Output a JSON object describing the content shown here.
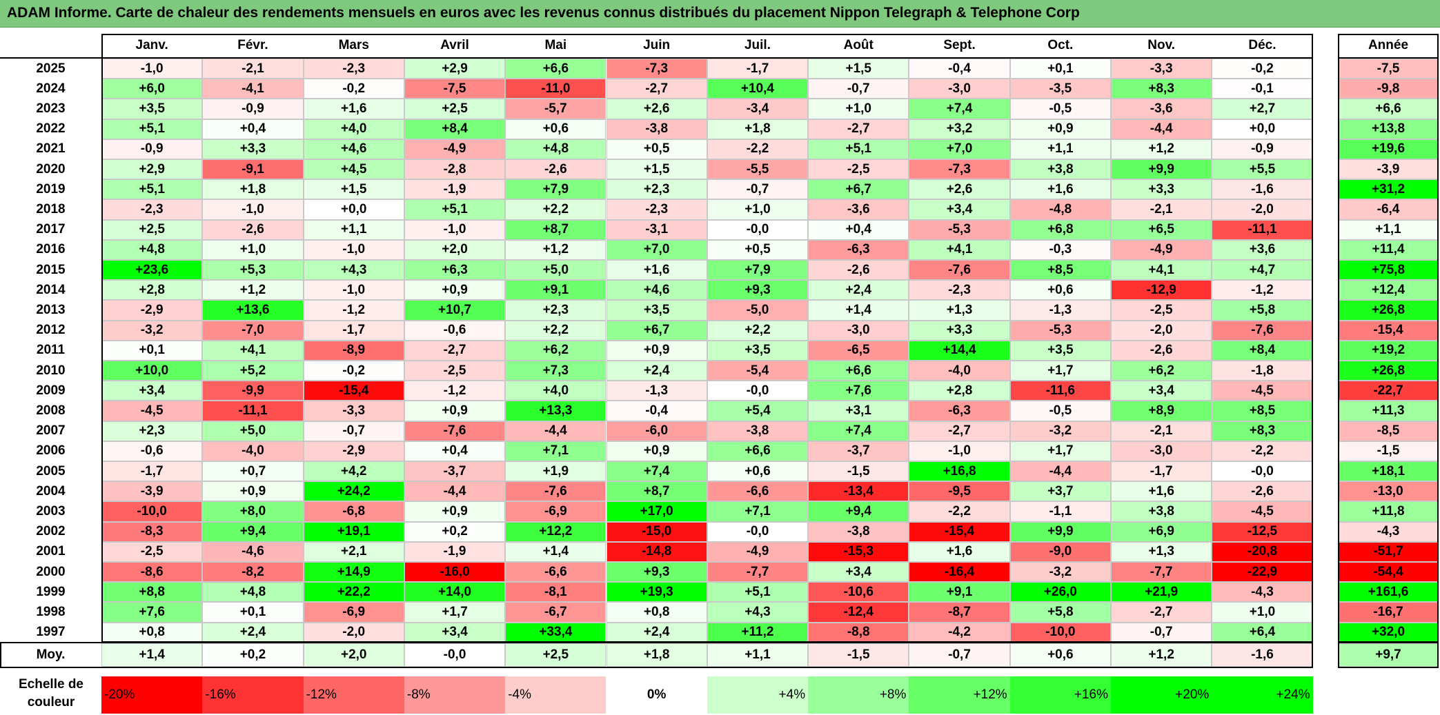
{
  "title": "ADAM Informe. Carte de chaleur des rendements mensuels en euros avec les revenus connus distribués du placement Nippon Telegraph & Telephone Corp",
  "chart_data": {
    "type": "heatmap",
    "columns": [
      "Janv.",
      "Févr.",
      "Mars",
      "Avril",
      "Mai",
      "Juin",
      "Juil.",
      "Août",
      "Sept.",
      "Oct.",
      "Nov.",
      "Déc."
    ],
    "year_column": "Année",
    "rows": [
      {
        "year": "2025",
        "values": [
          "-1,0",
          "-2,1",
          "-2,3",
          "+2,9",
          "+6,6",
          "-7,3",
          "-1,7",
          "+1,5",
          "-0,4",
          "+0,1",
          "-3,3",
          "-0,2"
        ],
        "annual": "-7,5"
      },
      {
        "year": "2024",
        "values": [
          "+6,0",
          "-4,1",
          "-0,2",
          "-7,5",
          "-11,0",
          "-2,7",
          "+10,4",
          "-0,7",
          "-3,0",
          "-3,5",
          "+8,3",
          "-0,1"
        ],
        "annual": "-9,8"
      },
      {
        "year": "2023",
        "values": [
          "+3,5",
          "-0,9",
          "+1,6",
          "+2,5",
          "-5,7",
          "+2,6",
          "-3,4",
          "+1,0",
          "+7,4",
          "-0,5",
          "-3,6",
          "+2,7"
        ],
        "annual": "+6,6"
      },
      {
        "year": "2022",
        "values": [
          "+5,1",
          "+0,4",
          "+4,0",
          "+8,4",
          "+0,6",
          "-3,8",
          "+1,8",
          "-2,7",
          "+3,2",
          "+0,9",
          "-4,4",
          "+0,0"
        ],
        "annual": "+13,8"
      },
      {
        "year": "2021",
        "values": [
          "-0,9",
          "+3,3",
          "+4,6",
          "-4,9",
          "+4,8",
          "+0,5",
          "-2,2",
          "+5,1",
          "+7,0",
          "+1,1",
          "+1,2",
          "-0,9"
        ],
        "annual": "+19,6"
      },
      {
        "year": "2020",
        "values": [
          "+2,9",
          "-9,1",
          "+4,5",
          "-2,8",
          "-2,6",
          "+1,5",
          "-5,5",
          "-2,5",
          "-7,3",
          "+3,8",
          "+9,9",
          "+5,5"
        ],
        "annual": "-3,9"
      },
      {
        "year": "2019",
        "values": [
          "+5,1",
          "+1,8",
          "+1,5",
          "-1,9",
          "+7,9",
          "+2,3",
          "-0,7",
          "+6,7",
          "+2,6",
          "+1,6",
          "+3,3",
          "-1,6"
        ],
        "annual": "+31,2"
      },
      {
        "year": "2018",
        "values": [
          "-2,3",
          "-1,0",
          "+0,0",
          "+5,1",
          "+2,2",
          "-2,3",
          "+1,0",
          "-3,6",
          "+3,4",
          "-4,8",
          "-2,1",
          "-2,0"
        ],
        "annual": "-6,4"
      },
      {
        "year": "2017",
        "values": [
          "+2,5",
          "-2,6",
          "+1,1",
          "-1,0",
          "+8,7",
          "-3,1",
          "-0,0",
          "+0,4",
          "-5,3",
          "+6,8",
          "+6,5",
          "-11,1"
        ],
        "annual": "+1,1"
      },
      {
        "year": "2016",
        "values": [
          "+4,8",
          "+1,0",
          "-1,0",
          "+2,0",
          "+1,2",
          "+7,0",
          "+0,5",
          "-6,3",
          "+4,1",
          "-0,3",
          "-4,9",
          "+3,6"
        ],
        "annual": "+11,4"
      },
      {
        "year": "2015",
        "values": [
          "+23,6",
          "+5,3",
          "+4,3",
          "+6,3",
          "+5,0",
          "+1,6",
          "+7,9",
          "-2,6",
          "-7,6",
          "+8,5",
          "+4,1",
          "+4,7"
        ],
        "annual": "+75,8"
      },
      {
        "year": "2014",
        "values": [
          "+2,8",
          "+1,2",
          "-1,0",
          "+0,9",
          "+9,1",
          "+4,6",
          "+9,3",
          "+2,4",
          "-2,3",
          "+0,6",
          "-12,9",
          "-1,2"
        ],
        "annual": "+12,4"
      },
      {
        "year": "2013",
        "values": [
          "-2,9",
          "+13,6",
          "-1,2",
          "+10,7",
          "+2,3",
          "+3,5",
          "-5,0",
          "+1,4",
          "+1,3",
          "-1,3",
          "-2,5",
          "+5,8"
        ],
        "annual": "+26,8"
      },
      {
        "year": "2012",
        "values": [
          "-3,2",
          "-7,0",
          "-1,7",
          "-0,6",
          "+2,2",
          "+6,7",
          "+2,2",
          "-3,0",
          "+3,3",
          "-5,3",
          "-2,0",
          "-7,6"
        ],
        "annual": "-15,4"
      },
      {
        "year": "2011",
        "values": [
          "+0,1",
          "+4,1",
          "-8,9",
          "-2,7",
          "+6,2",
          "+0,9",
          "+3,5",
          "-6,5",
          "+14,4",
          "+3,5",
          "-2,6",
          "+8,4"
        ],
        "annual": "+19,2"
      },
      {
        "year": "2010",
        "values": [
          "+10,0",
          "+5,2",
          "-0,2",
          "-2,5",
          "+7,3",
          "+2,4",
          "-5,4",
          "+6,6",
          "-4,0",
          "+1,7",
          "+6,2",
          "-1,8"
        ],
        "annual": "+26,8"
      },
      {
        "year": "2009",
        "values": [
          "+3,4",
          "-9,9",
          "-15,4",
          "-1,2",
          "+4,0",
          "-1,3",
          "-0,0",
          "+7,6",
          "+2,8",
          "-11,6",
          "+3,4",
          "-4,5"
        ],
        "annual": "-22,7"
      },
      {
        "year": "2008",
        "values": [
          "-4,5",
          "-11,1",
          "-3,3",
          "+0,9",
          "+13,3",
          "-0,4",
          "+5,4",
          "+3,1",
          "-6,3",
          "-0,5",
          "+8,9",
          "+8,5"
        ],
        "annual": "+11,3"
      },
      {
        "year": "2007",
        "values": [
          "+2,3",
          "+5,0",
          "-0,7",
          "-7,6",
          "-4,4",
          "-6,0",
          "-3,8",
          "+7,4",
          "-2,7",
          "-3,2",
          "-2,1",
          "+8,3"
        ],
        "annual": "-8,5"
      },
      {
        "year": "2006",
        "values": [
          "-0,6",
          "-4,0",
          "-2,9",
          "+0,4",
          "+7,1",
          "+0,9",
          "+6,6",
          "-3,7",
          "-1,0",
          "+1,7",
          "-3,0",
          "-2,2"
        ],
        "annual": "-1,5"
      },
      {
        "year": "2005",
        "values": [
          "-1,7",
          "+0,7",
          "+4,2",
          "-3,7",
          "+1,9",
          "+7,4",
          "+0,6",
          "-1,5",
          "+16,8",
          "-4,4",
          "-1,7",
          "-0,0"
        ],
        "annual": "+18,1"
      },
      {
        "year": "2004",
        "values": [
          "-3,9",
          "+0,9",
          "+24,2",
          "-4,4",
          "-7,6",
          "+8,7",
          "-6,6",
          "-13,4",
          "-9,5",
          "+3,7",
          "+1,6",
          "-2,6"
        ],
        "annual": "-13,0"
      },
      {
        "year": "2003",
        "values": [
          "-10,0",
          "+8,0",
          "-6,8",
          "+0,9",
          "-6,9",
          "+17,0",
          "+7,1",
          "+9,4",
          "-2,2",
          "-1,1",
          "+3,8",
          "-4,5"
        ],
        "annual": "+11,8"
      },
      {
        "year": "2002",
        "values": [
          "-8,3",
          "+9,4",
          "+19,1",
          "+0,2",
          "+12,2",
          "-15,0",
          "-0,0",
          "-3,8",
          "-15,4",
          "+9,9",
          "+6,9",
          "-12,5"
        ],
        "annual": "-4,3"
      },
      {
        "year": "2001",
        "values": [
          "-2,5",
          "-4,6",
          "+2,1",
          "-1,9",
          "+1,4",
          "-14,8",
          "-4,9",
          "-15,3",
          "+1,6",
          "-9,0",
          "+1,3",
          "-20,8"
        ],
        "annual": "-51,7"
      },
      {
        "year": "2000",
        "values": [
          "-8,6",
          "-8,2",
          "+14,9",
          "-16,0",
          "-6,6",
          "+9,3",
          "-7,7",
          "+3,4",
          "-16,4",
          "-3,2",
          "-7,7",
          "-22,9"
        ],
        "annual": "-54,4"
      },
      {
        "year": "1999",
        "values": [
          "+8,8",
          "+4,8",
          "+22,2",
          "+14,0",
          "-8,1",
          "+19,3",
          "+5,1",
          "-10,6",
          "+9,1",
          "+26,0",
          "+21,9",
          "-4,3"
        ],
        "annual": "+161,6"
      },
      {
        "year": "1998",
        "values": [
          "+7,6",
          "+0,1",
          "-6,9",
          "+1,7",
          "-6,7",
          "+0,8",
          "+4,3",
          "-12,4",
          "-8,7",
          "+5,8",
          "-2,7",
          "+1,0"
        ],
        "annual": "-16,7"
      },
      {
        "year": "1997",
        "values": [
          "+0,8",
          "+2,4",
          "-2,0",
          "+3,4",
          "+33,4",
          "+2,4",
          "+11,2",
          "-8,8",
          "-4,2",
          "-10,0",
          "-0,7",
          "+6,4"
        ],
        "annual": "+32,0"
      }
    ],
    "average": {
      "label": "Moy.",
      "values": [
        "+1,4",
        "+0,2",
        "+2,0",
        "-0,0",
        "+2,5",
        "+1,8",
        "+1,1",
        "-1,5",
        "-0,7",
        "+0,6",
        "+1,2",
        "-1,6"
      ],
      "annual": "+9,7"
    },
    "scale": {
      "label": "Echelle de couleur",
      "items": [
        {
          "label": "-20%",
          "value": -20,
          "align": "left"
        },
        {
          "label": "-16%",
          "value": -16,
          "align": "left"
        },
        {
          "label": "-12%",
          "value": -12,
          "align": "left"
        },
        {
          "label": "-8%",
          "value": -8,
          "align": "left"
        },
        {
          "label": "-4%",
          "value": -4,
          "align": "left"
        },
        {
          "label": "0%",
          "value": 0,
          "align": "center"
        },
        {
          "label": "+4%",
          "value": 4,
          "align": "right"
        },
        {
          "label": "+8%",
          "value": 8,
          "align": "right"
        },
        {
          "label": "+12%",
          "value": 12,
          "align": "right"
        },
        {
          "label": "+16%",
          "value": 16,
          "align": "right"
        },
        {
          "label": "+20%",
          "value": 20,
          "align": "right"
        },
        {
          "label": "+24%",
          "value": 24,
          "align": "right"
        }
      ]
    },
    "colors": {
      "negative": "#ff0000",
      "neutral": "#ffffff",
      "positive": "#00ff00",
      "title_bar": "#7fc97f"
    }
  }
}
